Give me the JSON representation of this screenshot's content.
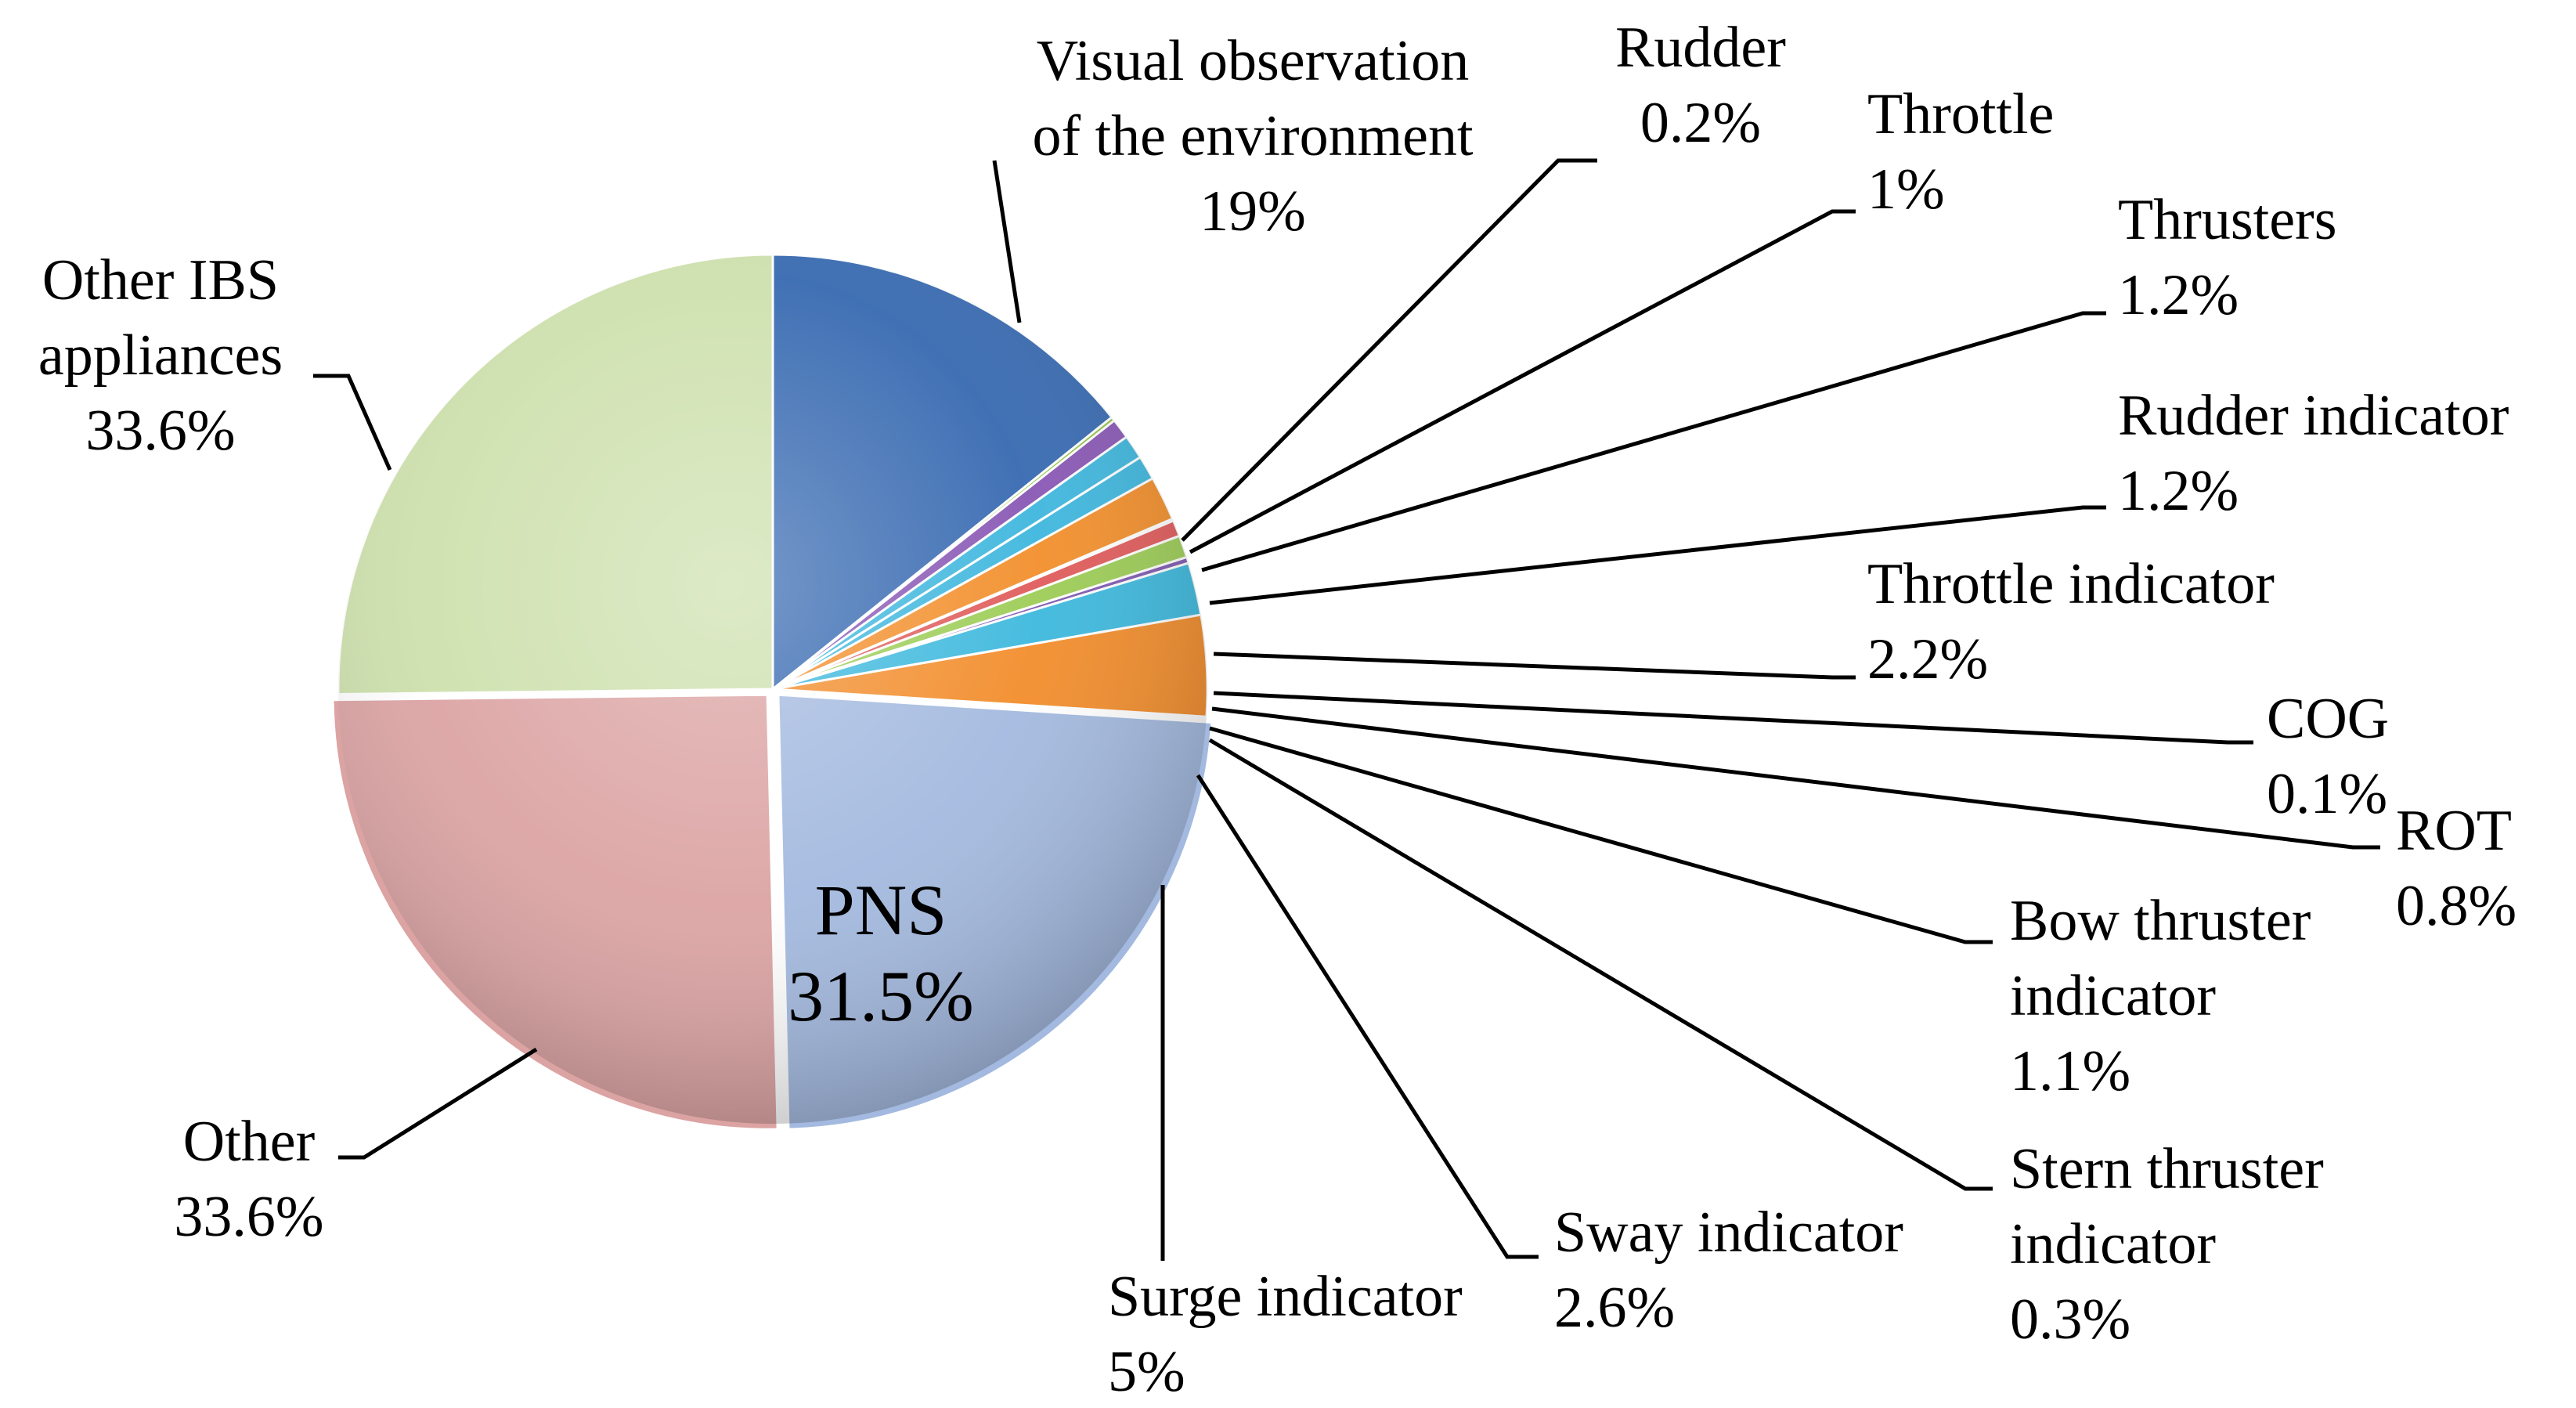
{
  "chart_data": {
    "type": "pie",
    "title": "",
    "slices": [
      {
        "lines": [
          "Visual observation",
          "of the environment"
        ],
        "value_label": "19%",
        "value": 19,
        "color": "#3568b0"
      },
      {
        "lines": [
          "Rudder"
        ],
        "value_label": "0.2%",
        "value": 0.2,
        "color": "#8fc13f"
      },
      {
        "lines": [
          "Throttle"
        ],
        "value_label": "1%",
        "value": 1,
        "color": "#8856b4"
      },
      {
        "lines": [
          "Thrusters"
        ],
        "value_label": "1.2%",
        "value": 1.2,
        "color": "#3db6dd"
      },
      {
        "lines": [
          "Rudder indicator"
        ],
        "value_label": "1.2%",
        "value": 1.2,
        "color": "#3db6dd"
      },
      {
        "lines": [
          "Throttle indicator"
        ],
        "value_label": "2.2%",
        "value": 2.2,
        "color": "#f28e2a"
      },
      {
        "lines": [
          "COG"
        ],
        "value_label": "0.1%",
        "value": 0.1,
        "color": "#2c5a9c"
      },
      {
        "lines": [
          "ROT"
        ],
        "value_label": "0.8%",
        "value": 0.8,
        "color": "#e05a5a"
      },
      {
        "lines": [
          "Bow thruster",
          "indicator"
        ],
        "value_label": "1.1%",
        "value": 1.1,
        "color": "#9ccc55"
      },
      {
        "lines": [
          "Stern thruster",
          "indicator"
        ],
        "value_label": "0.3%",
        "value": 0.3,
        "color": "#7e58b0"
      },
      {
        "lines": [
          "Sway indicator"
        ],
        "value_label": "2.6%",
        "value": 2.6,
        "color": "#3cb8dd"
      },
      {
        "lines": [
          "Surge indicator"
        ],
        "value_label": "5%",
        "value": 5,
        "color": "#f28c2a"
      },
      {
        "lines": [
          "PNS"
        ],
        "value_label": "31.5%",
        "value": 31.5,
        "color": "#a3b9df"
      },
      {
        "lines": [
          "Other"
        ],
        "value_label": "33.6%",
        "value": 33.6,
        "color": "#dca3a3"
      },
      {
        "lines": [
          "Other IBS",
          "appliances"
        ],
        "value_label": "33.6%",
        "value": 33.6,
        "color": "#cde0ac"
      }
    ]
  }
}
